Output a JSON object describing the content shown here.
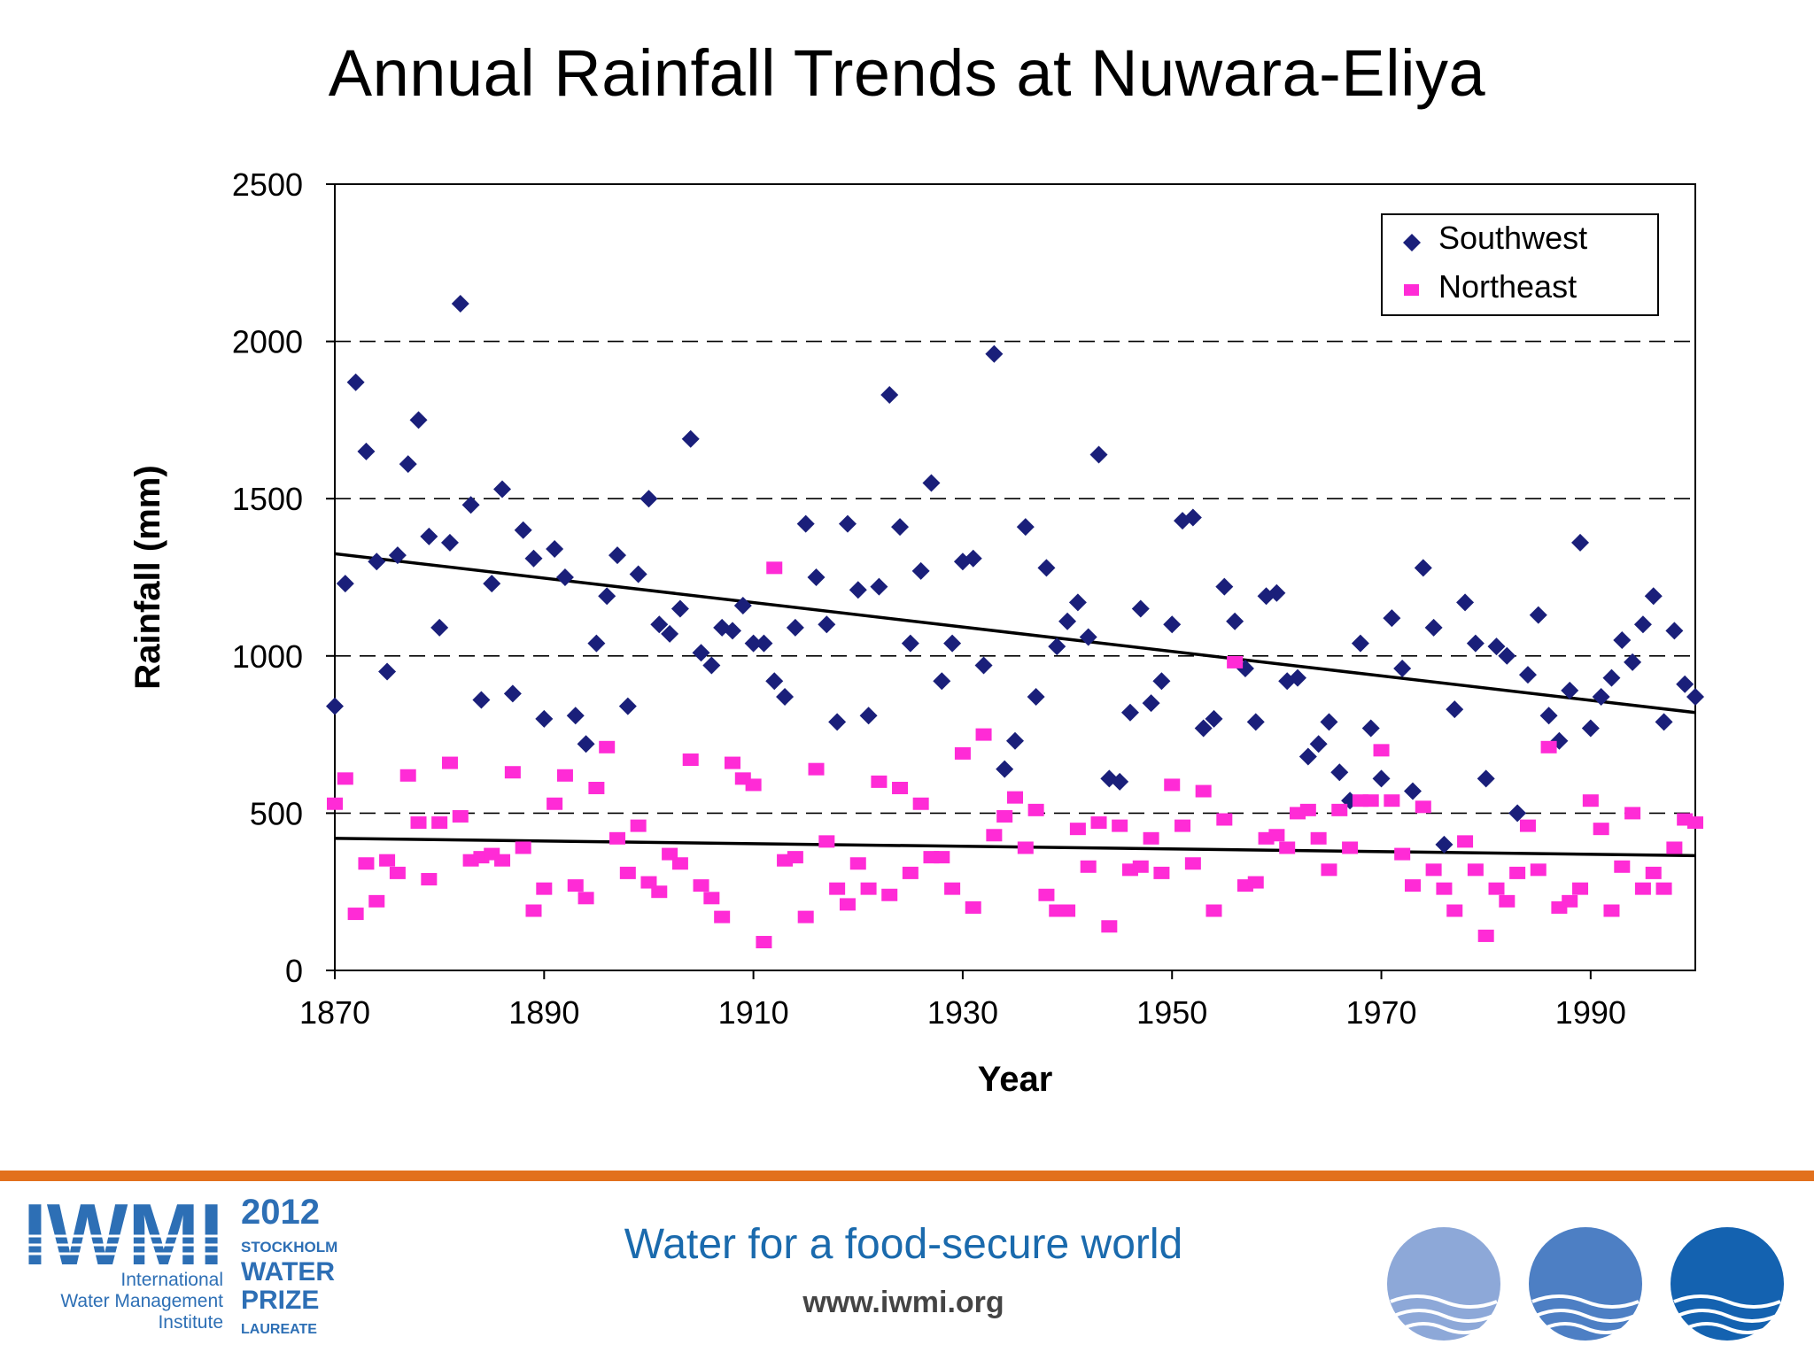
{
  "slide": {
    "title": "Annual Rainfall Trends at Nuwara-Eliya"
  },
  "footer": {
    "logo_text": "IWMI",
    "logo_subtitle_line1": "International",
    "logo_subtitle_line2": "Water Management",
    "logo_subtitle_line3": "Institute",
    "prize_year": "2012",
    "prize_line1": "STOCKHOLM",
    "prize_line2": "WATER",
    "prize_line3": "PRIZE",
    "prize_line4": "LAUREATE",
    "tagline": "Water for a food-secure world",
    "url": "www.iwmi.org"
  },
  "chart_data": {
    "type": "scatter",
    "title": "",
    "xlabel": "Year",
    "ylabel": "Rainfall (mm)",
    "xlim": [
      1870,
      2000
    ],
    "ylim": [
      0,
      2500
    ],
    "xticks": [
      1870,
      1890,
      1910,
      1930,
      1950,
      1970,
      1990
    ],
    "yticks": [
      0,
      500,
      1000,
      1500,
      2000,
      2500
    ],
    "grid": "horizontal dashed",
    "legend": "top-right",
    "series": [
      {
        "name": "Southwest",
        "color": "#1a1f7a",
        "marker": "diamond",
        "x": [
          1870,
          1871,
          1872,
          1873,
          1874,
          1875,
          1876,
          1877,
          1878,
          1879,
          1880,
          1881,
          1882,
          1883,
          1884,
          1885,
          1886,
          1887,
          1888,
          1889,
          1890,
          1891,
          1892,
          1893,
          1894,
          1895,
          1896,
          1897,
          1898,
          1899,
          1900,
          1901,
          1902,
          1903,
          1904,
          1905,
          1906,
          1907,
          1908,
          1909,
          1910,
          1911,
          1912,
          1913,
          1914,
          1915,
          1916,
          1917,
          1918,
          1919,
          1920,
          1921,
          1922,
          1923,
          1924,
          1925,
          1926,
          1927,
          1928,
          1929,
          1930,
          1931,
          1932,
          1933,
          1934,
          1935,
          1936,
          1937,
          1938,
          1939,
          1940,
          1941,
          1942,
          1943,
          1944,
          1945,
          1946,
          1947,
          1948,
          1949,
          1950,
          1951,
          1952,
          1953,
          1954,
          1955,
          1956,
          1957,
          1958,
          1959,
          1960,
          1961,
          1962,
          1963,
          1964,
          1965,
          1966,
          1967,
          1968,
          1969,
          1970,
          1971,
          1972,
          1973,
          1974,
          1975,
          1976,
          1977,
          1978,
          1979,
          1980,
          1981,
          1982,
          1983,
          1984,
          1985,
          1986,
          1987,
          1988,
          1989,
          1990,
          1991,
          1992,
          1993,
          1994,
          1995,
          1996,
          1997,
          1998,
          1999,
          2000
        ],
        "y": [
          840,
          1230,
          1870,
          1650,
          1300,
          950,
          1320,
          1610,
          1750,
          1380,
          1090,
          1360,
          2120,
          1480,
          860,
          1230,
          1530,
          880,
          1400,
          1310,
          800,
          1340,
          1250,
          810,
          720,
          1040,
          1190,
          1320,
          840,
          1260,
          1500,
          1100,
          1070,
          1150,
          1690,
          1010,
          970,
          1090,
          1080,
          1160,
          1040,
          1040,
          920,
          870,
          1090,
          1420,
          1250,
          1100,
          790,
          1420,
          1210,
          810,
          1220,
          1830,
          1410,
          1040,
          1270,
          1550,
          920,
          1040,
          1300,
          1310,
          970,
          1960,
          640,
          730,
          1410,
          870,
          1280,
          1030,
          1110,
          1170,
          1060,
          1640,
          610,
          600,
          820,
          1150,
          850,
          920,
          1100,
          1430,
          1440,
          770,
          800,
          1220,
          1110,
          960,
          790,
          1190,
          1200,
          920,
          930,
          680,
          720,
          790,
          630,
          540,
          1040,
          770,
          610,
          1120,
          960,
          570,
          1280,
          1090,
          400,
          830,
          1170,
          1040,
          610,
          1030,
          1000,
          500,
          940,
          1130,
          810,
          730,
          890,
          1360,
          770,
          870,
          930,
          1050,
          980,
          1100,
          1190,
          790,
          1080,
          910,
          870
        ]
      },
      {
        "name": "Northeast",
        "color": "#ff2bd6",
        "marker": "square",
        "x": [
          1870,
          1871,
          1872,
          1873,
          1874,
          1875,
          1876,
          1877,
          1878,
          1879,
          1880,
          1881,
          1882,
          1883,
          1884,
          1885,
          1886,
          1887,
          1888,
          1889,
          1890,
          1891,
          1892,
          1893,
          1894,
          1895,
          1896,
          1897,
          1898,
          1899,
          1900,
          1901,
          1902,
          1903,
          1904,
          1905,
          1906,
          1907,
          1908,
          1909,
          1910,
          1911,
          1912,
          1913,
          1914,
          1915,
          1916,
          1917,
          1918,
          1919,
          1920,
          1921,
          1922,
          1923,
          1924,
          1925,
          1926,
          1927,
          1928,
          1929,
          1930,
          1931,
          1932,
          1933,
          1934,
          1935,
          1936,
          1937,
          1938,
          1939,
          1940,
          1941,
          1942,
          1943,
          1944,
          1945,
          1946,
          1947,
          1948,
          1949,
          1950,
          1951,
          1952,
          1953,
          1954,
          1955,
          1956,
          1957,
          1958,
          1959,
          1960,
          1961,
          1962,
          1963,
          1964,
          1965,
          1966,
          1967,
          1968,
          1969,
          1970,
          1971,
          1972,
          1973,
          1974,
          1975,
          1976,
          1977,
          1978,
          1979,
          1980,
          1981,
          1982,
          1983,
          1984,
          1985,
          1986,
          1987,
          1988,
          1989,
          1990,
          1991,
          1992,
          1993,
          1994,
          1995,
          1996,
          1997,
          1998,
          1999,
          2000
        ],
        "y": [
          530,
          610,
          180,
          340,
          220,
          350,
          310,
          620,
          470,
          290,
          470,
          660,
          490,
          350,
          360,
          370,
          350,
          630,
          390,
          190,
          260,
          530,
          620,
          270,
          230,
          580,
          710,
          420,
          310,
          460,
          280,
          250,
          370,
          340,
          670,
          270,
          230,
          170,
          660,
          610,
          590,
          90,
          1280,
          350,
          360,
          170,
          640,
          410,
          260,
          210,
          340,
          260,
          600,
          240,
          580,
          310,
          530,
          360,
          360,
          260,
          690,
          200,
          750,
          430,
          490,
          550,
          390,
          510,
          240,
          190,
          190,
          450,
          330,
          470,
          140,
          460,
          320,
          330,
          420,
          310,
          590,
          460,
          340,
          570,
          190,
          480,
          980,
          270,
          280,
          420,
          430,
          390,
          500,
          510,
          420,
          320,
          510,
          390,
          540,
          540,
          700,
          540,
          370,
          270,
          520,
          320,
          260,
          190,
          410,
          320,
          110,
          260,
          220,
          310,
          460,
          320,
          710,
          200,
          220,
          260,
          540,
          450,
          190,
          330,
          500,
          260,
          310,
          260,
          390,
          480,
          470
        ]
      }
    ],
    "trendlines": [
      {
        "series": "Southwest",
        "x": [
          1870,
          2000
        ],
        "y": [
          1325,
          820
        ]
      },
      {
        "series": "Northeast",
        "x": [
          1870,
          2000
        ],
        "y": [
          420,
          365
        ]
      }
    ]
  }
}
